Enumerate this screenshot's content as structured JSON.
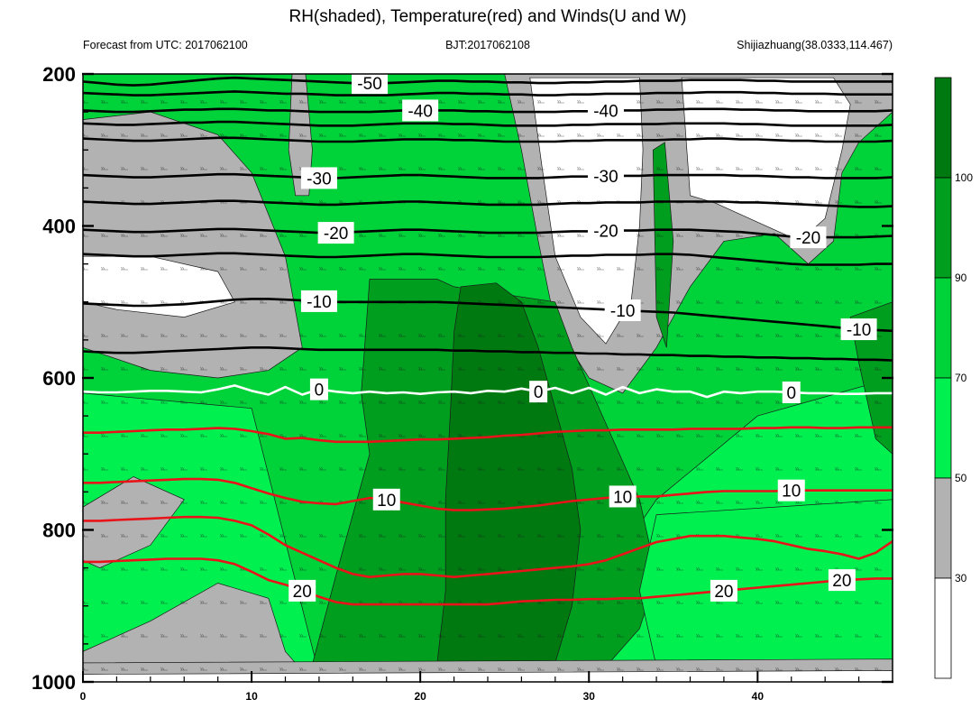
{
  "title": "RH(shaded), Temperature(red) and Winds(U and W)",
  "subtitle_left": "Forecast from UTC: 2017062100",
  "subtitle_center": "BJT:2017062108",
  "subtitle_right": "Shijiazhuang(38.0333,114.467)",
  "colors": {
    "rh_lt30": "#ffffff",
    "rh_30_50": "#b2b2b2",
    "rh_50_70": "#00f050",
    "rh_70_90": "#00d23a",
    "rh_90_100": "#009e1e",
    "rh_gt100": "#007a10",
    "temp_pos": "#e8141a",
    "temp_zero": "#ffffff",
    "temp_neg": "#000000"
  },
  "chart_data": {
    "type": "heatmap",
    "title": "RH(shaded), Temperature(red) and Winds(U and W)",
    "xlim": [
      0,
      48
    ],
    "ylim": [
      1000,
      200
    ],
    "y_reversed": true,
    "x_ticks": [
      "0",
      "10",
      "20",
      "30",
      "40"
    ],
    "y_ticks": [
      "200",
      "400",
      "600",
      "800",
      "1000"
    ],
    "colorbar_levels": [
      "30",
      "50",
      "70",
      "90",
      "100"
    ],
    "temperature_contours": [
      {
        "label": "-50",
        "p": [
          210,
          212,
          214,
          215,
          214,
          212,
          210,
          208,
          206,
          205,
          206,
          207,
          208,
          209,
          210,
          211,
          212,
          212,
          212,
          211,
          210,
          209,
          209,
          210,
          210,
          211,
          211,
          212,
          212,
          211,
          211,
          210,
          210,
          209,
          209,
          209,
          208,
          208,
          208,
          208,
          209,
          209,
          210,
          210,
          210,
          210,
          210,
          210,
          210
        ]
      },
      {
        "label": "",
        "p": [
          225,
          226,
          227,
          228,
          228,
          227,
          226,
          225,
          224,
          223,
          224,
          225,
          226,
          226,
          227,
          228,
          228,
          228,
          228,
          227,
          226,
          225,
          225,
          226,
          226,
          227,
          227,
          228,
          228,
          227,
          227,
          226,
          226,
          226,
          225,
          225,
          225,
          224,
          224,
          224,
          225,
          225,
          226,
          226,
          226,
          227,
          227,
          227,
          227
        ]
      },
      {
        "label": "-40",
        "p": [
          248,
          249,
          250,
          250,
          249,
          248,
          247,
          247,
          246,
          246,
          247,
          248,
          248,
          249,
          250,
          250,
          250,
          250,
          249,
          248,
          248,
          248,
          248,
          249,
          249,
          250,
          250,
          250,
          250,
          249,
          249,
          248,
          248,
          248,
          247,
          247,
          246,
          246,
          246,
          247,
          247,
          248,
          248,
          249,
          249,
          249,
          249,
          249,
          248
        ]
      },
      {
        "label": "",
        "p": [
          265,
          266,
          267,
          267,
          266,
          265,
          264,
          264,
          263,
          263,
          264,
          265,
          266,
          267,
          268,
          268,
          268,
          267,
          266,
          265,
          265,
          265,
          266,
          266,
          267,
          268,
          268,
          268,
          268,
          267,
          267,
          266,
          266,
          266,
          266,
          265,
          265,
          265,
          265,
          266,
          266,
          267,
          268,
          268,
          268,
          268,
          268,
          268,
          267
        ]
      },
      {
        "label": "",
        "p": [
          285,
          286,
          287,
          288,
          288,
          287,
          286,
          285,
          284,
          284,
          285,
          286,
          287,
          288,
          289,
          289,
          289,
          288,
          287,
          286,
          286,
          286,
          287,
          287,
          288,
          289,
          289,
          289,
          289,
          288,
          288,
          287,
          287,
          287,
          287,
          286,
          286,
          285,
          285,
          286,
          286,
          287,
          288,
          288,
          289,
          289,
          289,
          289,
          288
        ]
      },
      {
        "label": "-30",
        "p": [
          333,
          334,
          335,
          336,
          336,
          335,
          334,
          333,
          332,
          332,
          333,
          334,
          335,
          336,
          337,
          337,
          336,
          335,
          334,
          333,
          333,
          334,
          335,
          336,
          337,
          337,
          337,
          337,
          336,
          335,
          335,
          334,
          334,
          334,
          333,
          333,
          333,
          333,
          333,
          334,
          334,
          335,
          336,
          336,
          337,
          337,
          337,
          337,
          336
        ]
      },
      {
        "label": "",
        "p": [
          368,
          369,
          370,
          371,
          371,
          370,
          369,
          368,
          367,
          367,
          368,
          369,
          370,
          371,
          372,
          372,
          371,
          370,
          369,
          368,
          368,
          369,
          370,
          371,
          372,
          372,
          372,
          372,
          371,
          370,
          370,
          369,
          369,
          369,
          368,
          368,
          368,
          368,
          368,
          369,
          369,
          370,
          371,
          372,
          373,
          374,
          375,
          375,
          374
        ]
      },
      {
        "label": "-20",
        "p": [
          405,
          406,
          407,
          408,
          408,
          407,
          406,
          405,
          404,
          404,
          405,
          406,
          407,
          408,
          409,
          409,
          408,
          407,
          406,
          405,
          405,
          406,
          407,
          408,
          409,
          409,
          409,
          409,
          408,
          407,
          407,
          406,
          406,
          406,
          405,
          405,
          405,
          406,
          407,
          408,
          410,
          412,
          414,
          415,
          415,
          415,
          415,
          414,
          413
        ]
      },
      {
        "label": "",
        "p": [
          437,
          438,
          439,
          440,
          440,
          439,
          438,
          437,
          436,
          436,
          437,
          438,
          439,
          440,
          441,
          441,
          440,
          439,
          438,
          437,
          437,
          438,
          439,
          440,
          441,
          441,
          441,
          441,
          440,
          439,
          439,
          438,
          438,
          438,
          437,
          437,
          438,
          440,
          442,
          444,
          446,
          448,
          450,
          451,
          451,
          451,
          451,
          450,
          450
        ]
      },
      {
        "label": "-10",
        "p": [
          502,
          503,
          504,
          505,
          505,
          504,
          503,
          501,
          499,
          497,
          496,
          496,
          497,
          498,
          499,
          500,
          500,
          500,
          500,
          500,
          500,
          500,
          501,
          502,
          503,
          504,
          505,
          506,
          507,
          508,
          509,
          510,
          511,
          512,
          513,
          514,
          516,
          518,
          520,
          522,
          524,
          526,
          528,
          530,
          532,
          534,
          536,
          537,
          538
        ]
      },
      {
        "label": "",
        "p": [
          565,
          566,
          567,
          567,
          566,
          565,
          564,
          563,
          562,
          561,
          560,
          560,
          561,
          562,
          563,
          563,
          563,
          563,
          563,
          563,
          563,
          563,
          564,
          564,
          565,
          565,
          566,
          566,
          567,
          567,
          568,
          568,
          569,
          569,
          570,
          570,
          571,
          571,
          572,
          572,
          573,
          573,
          574,
          574,
          575,
          575,
          576,
          576,
          577
        ]
      },
      {
        "label": "0",
        "p": [
          618,
          619,
          619,
          618,
          617,
          617,
          618,
          619,
          615,
          610,
          617,
          622,
          612,
          622,
          615,
          618,
          620,
          618,
          620,
          619,
          621,
          619,
          618,
          620,
          617,
          618,
          614,
          618,
          613,
          620,
          613,
          622,
          612,
          620,
          615,
          618,
          618,
          625,
          618,
          620,
          618,
          618,
          619,
          620,
          620,
          621,
          621,
          620,
          620
        ]
      },
      {
        "label": "",
        "p": [
          672,
          672,
          671,
          670,
          669,
          668,
          668,
          667,
          666,
          667,
          670,
          674,
          680,
          679,
          682,
          684,
          684,
          684,
          683,
          682,
          681,
          681,
          680,
          679,
          678,
          676,
          675,
          673,
          671,
          670,
          669,
          669,
          668,
          668,
          668,
          668,
          667,
          667,
          667,
          667,
          666,
          666,
          665,
          665,
          666,
          666,
          665,
          665,
          665
        ]
      },
      {
        "label": "10",
        "p": [
          738,
          738,
          737,
          736,
          735,
          734,
          733,
          733,
          734,
          738,
          745,
          752,
          758,
          763,
          765,
          766,
          762,
          758,
          760,
          764,
          768,
          772,
          774,
          774,
          773,
          772,
          770,
          768,
          765,
          762,
          760,
          758,
          756,
          756,
          756,
          754,
          752,
          750,
          749,
          749,
          749,
          749,
          748,
          748,
          748,
          748,
          748,
          748,
          748
        ]
      },
      {
        "label": "",
        "p": [
          788,
          788,
          787,
          786,
          785,
          784,
          783,
          783,
          784,
          788,
          794,
          806,
          820,
          830,
          840,
          850,
          858,
          862,
          860,
          858,
          858,
          860,
          862,
          860,
          858,
          856,
          854,
          852,
          850,
          848,
          845,
          840,
          832,
          824,
          816,
          812,
          808,
          808,
          808,
          810,
          812,
          815,
          820,
          825,
          828,
          832,
          838,
          830,
          815
        ]
      },
      {
        "label": "20",
        "p": [
          842,
          842,
          841,
          840,
          839,
          838,
          838,
          838,
          840,
          845,
          855,
          866,
          872,
          880,
          888,
          895,
          898,
          898,
          898,
          898,
          898,
          898,
          898,
          898,
          898,
          896,
          894,
          893,
          892,
          892,
          891,
          891,
          890,
          890,
          888,
          886,
          884,
          882,
          880,
          878,
          876,
          874,
          872,
          870,
          868,
          866,
          865,
          864,
          864
        ]
      }
    ],
    "rh_zones": [
      {
        "label": ">100",
        "approx_x_range": [
          22,
          29
        ],
        "approx_p_range": [
          490,
          990
        ]
      },
      {
        "label": "<30",
        "approx_x_range": [
          28,
          33
        ],
        "approx_p_range": [
          205,
          540
        ]
      },
      {
        "label": "30-50",
        "approx_x_range": [
          0,
          12
        ],
        "approx_p_range": [
          840,
          990
        ]
      }
    ]
  }
}
